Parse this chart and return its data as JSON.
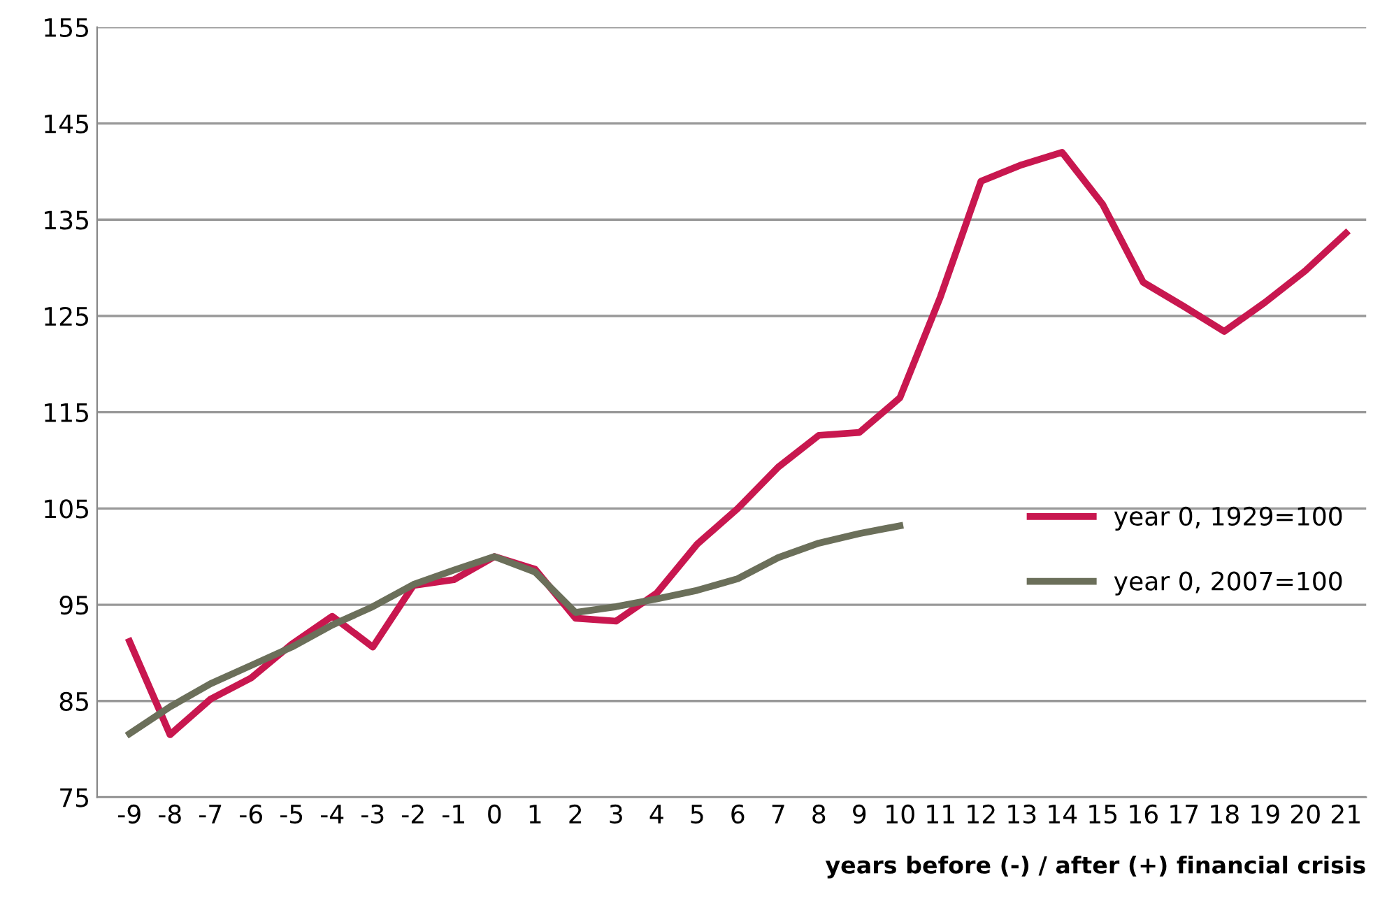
{
  "chart_data": {
    "type": "line",
    "xlabel": "years before (-) / after (+) financial crisis",
    "categories": [
      "-9",
      "-8",
      "-7",
      "-6",
      "-5",
      "-4",
      "-3",
      "-2",
      "-1",
      "0",
      "1",
      "2",
      "3",
      "4",
      "5",
      "6",
      "7",
      "8",
      "9",
      "10",
      "11",
      "12",
      "13",
      "14",
      "15",
      "16",
      "17",
      "18",
      "19",
      "20",
      "21"
    ],
    "ylim": [
      75,
      155
    ],
    "yticks": [
      75,
      85,
      95,
      105,
      115,
      125,
      135,
      145,
      155
    ],
    "grid": "y",
    "legend": "right",
    "line_style": "solid",
    "marker": "none",
    "series": [
      {
        "name": "year 0, 1929=100",
        "color": "#c8174f",
        "values": [
          91.2,
          81.5,
          85.2,
          87.4,
          90.9,
          93.8,
          90.6,
          97,
          97.6,
          100,
          98.7,
          93.6,
          93.3,
          96.2,
          101.3,
          105,
          109.3,
          112.6,
          112.9,
          116.5,
          127,
          139,
          140.7,
          142,
          136.6,
          128.5,
          126,
          123.4,
          126.4,
          129.7,
          133.6
        ]
      },
      {
        "name": "year 0, 2007=100",
        "color": "#6b6f5a",
        "values": [
          81.6,
          84.4,
          86.8,
          88.7,
          90.6,
          92.9,
          94.8,
          97.1,
          98.6,
          100,
          98.4,
          94.2,
          94.8,
          95.6,
          96.5,
          97.7,
          99.9,
          101.4,
          102.4,
          103.2,
          null,
          null,
          null,
          null,
          null,
          null,
          null,
          null,
          null,
          null,
          null
        ]
      }
    ]
  }
}
